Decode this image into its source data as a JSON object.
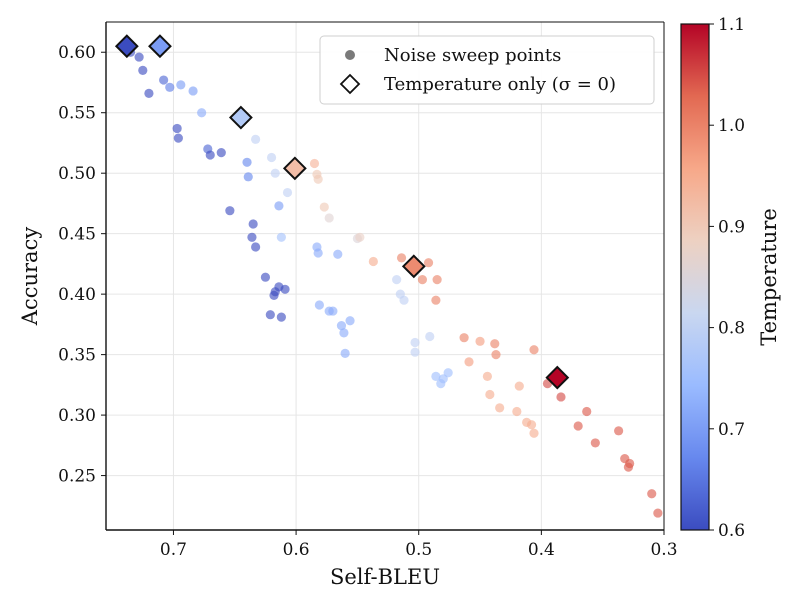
{
  "chart_data": {
    "type": "scatter",
    "title": "",
    "xlabel": "Self-BLEU",
    "ylabel": "Accuracy",
    "x_reversed": true,
    "xlim": [
      0.755,
      0.3
    ],
    "ylim": [
      0.205,
      0.625
    ],
    "xticks": [
      0.7,
      0.6,
      0.5,
      0.4,
      0.3
    ],
    "xtick_labels": [
      "0.7",
      "0.6",
      "0.5",
      "0.4",
      "0.3"
    ],
    "yticks": [
      0.25,
      0.3,
      0.35,
      0.4,
      0.45,
      0.5,
      0.55,
      0.6
    ],
    "ytick_labels": [
      "0.25",
      "0.30",
      "0.35",
      "0.40",
      "0.45",
      "0.50",
      "0.55",
      "0.60"
    ],
    "grid": true,
    "colormap": {
      "name": "coolwarm",
      "label": "Temperature",
      "range": [
        0.6,
        1.1
      ],
      "ticks": [
        0.6,
        0.7,
        0.8,
        0.9,
        1.0,
        1.1
      ],
      "tick_labels": [
        "0.6",
        "0.7",
        "0.8",
        "0.9",
        "1.0",
        "1.1"
      ],
      "stops": [
        "#3b4cc0",
        "#6788ee",
        "#9abbff",
        "#c9d7f0",
        "#edd1c2",
        "#f7a889",
        "#e26952",
        "#b40426"
      ]
    },
    "legend": {
      "position": "top-right",
      "entries": [
        "Noise sweep points",
        "Temperature only (σ = 0)"
      ]
    },
    "series": [
      {
        "name": "Noise sweep points",
        "marker": "circle",
        "points": [
          [
            0.735,
            0.6,
            0.6
          ],
          [
            0.728,
            0.596,
            0.6
          ],
          [
            0.725,
            0.585,
            0.6
          ],
          [
            0.72,
            0.566,
            0.6
          ],
          [
            0.708,
            0.577,
            0.63
          ],
          [
            0.703,
            0.571,
            0.66
          ],
          [
            0.694,
            0.573,
            0.7
          ],
          [
            0.684,
            0.568,
            0.7
          ],
          [
            0.677,
            0.55,
            0.72
          ],
          [
            0.697,
            0.537,
            0.6
          ],
          [
            0.696,
            0.529,
            0.6
          ],
          [
            0.672,
            0.52,
            0.63
          ],
          [
            0.67,
            0.515,
            0.6
          ],
          [
            0.661,
            0.517,
            0.6
          ],
          [
            0.64,
            0.509,
            0.67
          ],
          [
            0.639,
            0.497,
            0.67
          ],
          [
            0.633,
            0.528,
            0.8
          ],
          [
            0.62,
            0.513,
            0.8
          ],
          [
            0.617,
            0.5,
            0.8
          ],
          [
            0.607,
            0.484,
            0.8
          ],
          [
            0.654,
            0.469,
            0.6
          ],
          [
            0.635,
            0.458,
            0.6
          ],
          [
            0.636,
            0.447,
            0.6
          ],
          [
            0.633,
            0.439,
            0.6
          ],
          [
            0.614,
            0.473,
            0.7
          ],
          [
            0.612,
            0.447,
            0.76
          ],
          [
            0.625,
            0.414,
            0.6
          ],
          [
            0.618,
            0.399,
            0.6
          ],
          [
            0.614,
            0.406,
            0.6
          ],
          [
            0.609,
            0.404,
            0.6
          ],
          [
            0.617,
            0.402,
            0.6
          ],
          [
            0.621,
            0.383,
            0.6
          ],
          [
            0.612,
            0.381,
            0.6
          ],
          [
            0.583,
            0.439,
            0.72
          ],
          [
            0.582,
            0.434,
            0.72
          ],
          [
            0.566,
            0.433,
            0.72
          ],
          [
            0.581,
            0.391,
            0.72
          ],
          [
            0.573,
            0.386,
            0.72
          ],
          [
            0.57,
            0.386,
            0.72
          ],
          [
            0.563,
            0.374,
            0.72
          ],
          [
            0.561,
            0.368,
            0.72
          ],
          [
            0.56,
            0.351,
            0.72
          ],
          [
            0.556,
            0.378,
            0.72
          ],
          [
            0.55,
            0.446,
            0.85
          ],
          [
            0.573,
            0.463,
            0.86
          ],
          [
            0.583,
            0.499,
            0.9
          ],
          [
            0.582,
            0.495,
            0.9
          ],
          [
            0.577,
            0.472,
            0.9
          ],
          [
            0.585,
            0.508,
            0.94
          ],
          [
            0.548,
            0.447,
            0.88
          ],
          [
            0.537,
            0.427,
            0.95
          ],
          [
            0.518,
            0.412,
            0.8
          ],
          [
            0.515,
            0.4,
            0.8
          ],
          [
            0.512,
            0.395,
            0.8
          ],
          [
            0.491,
            0.365,
            0.8
          ],
          [
            0.503,
            0.36,
            0.8
          ],
          [
            0.503,
            0.352,
            0.8
          ],
          [
            0.486,
            0.332,
            0.75
          ],
          [
            0.48,
            0.33,
            0.75
          ],
          [
            0.482,
            0.326,
            0.75
          ],
          [
            0.476,
            0.335,
            0.75
          ],
          [
            0.514,
            0.43,
            1.0
          ],
          [
            0.492,
            0.426,
            1.0
          ],
          [
            0.497,
            0.412,
            1.0
          ],
          [
            0.485,
            0.412,
            1.0
          ],
          [
            0.486,
            0.395,
            1.0
          ],
          [
            0.463,
            0.364,
            1.0
          ],
          [
            0.45,
            0.361,
            0.97
          ],
          [
            0.459,
            0.344,
            0.97
          ],
          [
            0.438,
            0.359,
            1.0
          ],
          [
            0.437,
            0.35,
            1.0
          ],
          [
            0.406,
            0.354,
            1.0
          ],
          [
            0.444,
            0.332,
            0.95
          ],
          [
            0.442,
            0.317,
            0.95
          ],
          [
            0.434,
            0.306,
            0.95
          ],
          [
            0.418,
            0.324,
            0.95
          ],
          [
            0.42,
            0.303,
            0.95
          ],
          [
            0.412,
            0.294,
            0.95
          ],
          [
            0.408,
            0.292,
            0.95
          ],
          [
            0.406,
            0.285,
            0.95
          ],
          [
            0.395,
            0.326,
            1.05
          ],
          [
            0.384,
            0.315,
            1.05
          ],
          [
            0.363,
            0.303,
            1.04
          ],
          [
            0.37,
            0.291,
            1.04
          ],
          [
            0.356,
            0.277,
            1.04
          ],
          [
            0.337,
            0.287,
            1.04
          ],
          [
            0.332,
            0.264,
            1.04
          ],
          [
            0.328,
            0.26,
            1.04
          ],
          [
            0.329,
            0.257,
            1.04
          ],
          [
            0.31,
            0.235,
            1.04
          ],
          [
            0.305,
            0.219,
            1.04
          ]
        ]
      },
      {
        "name": "Temperature only (σ = 0)",
        "marker": "diamond",
        "points": [
          [
            0.738,
            0.605,
            0.6
          ],
          [
            0.711,
            0.605,
            0.7
          ],
          [
            0.645,
            0.546,
            0.78
          ],
          [
            0.601,
            0.504,
            0.92
          ],
          [
            0.504,
            0.423,
            0.99
          ],
          [
            0.387,
            0.331,
            1.1
          ]
        ]
      }
    ]
  }
}
